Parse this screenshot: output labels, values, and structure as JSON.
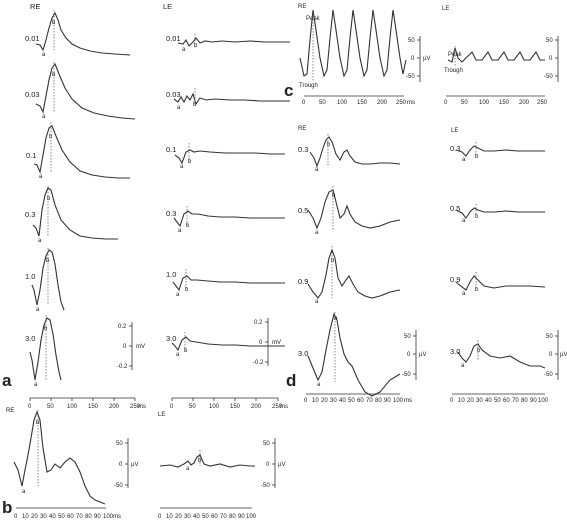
{
  "panel_labels": {
    "a": "a",
    "b": "b",
    "c": "c",
    "d": "d"
  },
  "eye_labels": {
    "re": "RE",
    "le": "LE"
  },
  "units": {
    "ms": "ms",
    "mv": "mV",
    "uv": "µV"
  },
  "annotations": {
    "peak": "Peak",
    "trough": "Trough"
  },
  "wave_marks": {
    "a": "a",
    "b": "b"
  },
  "chart_data": [
    {
      "panel": "a",
      "type": "line",
      "description_of_axes": "scotopic ERG series, time (ms) vs amplitude (mV)",
      "x_ticks": [
        "0",
        "50",
        "100",
        "150",
        "200",
        "250"
      ],
      "x_unit": "ms",
      "y_ticks": [
        "0.2",
        "0",
        "-0.2"
      ],
      "y_unit": "mV",
      "xlim": [
        0,
        250
      ],
      "ylim": [
        -0.3,
        0.3
      ],
      "stimulus_labels_RE": [
        "0.01",
        "0.03",
        "0.1",
        "0.3",
        "1.0",
        "3.0"
      ],
      "stimulus_labels_LE": [
        "0.01",
        "0.03",
        "0.1",
        "0.3",
        "1.0",
        "3.0"
      ],
      "series_RE_b_wave_peak_ms": [
        25,
        30,
        27,
        25,
        30,
        40
      ],
      "series_LE_b_wave_peak_ms": [
        35,
        40,
        38,
        38,
        40,
        42
      ]
    },
    {
      "panel": "b",
      "type": "line",
      "x_ticks": [
        "0",
        "10",
        "20",
        "30",
        "40",
        "50",
        "60",
        "70",
        "80",
        "90",
        "100"
      ],
      "x_unit": "ms",
      "y_ticks": [
        "50",
        "0",
        "-50"
      ],
      "y_unit": "µV",
      "xlim": [
        0,
        100
      ],
      "ylim": [
        -70,
        80
      ],
      "RE_b_wave_uv": 70,
      "LE_b_wave_uv": 12
    },
    {
      "panel": "c",
      "type": "line",
      "x_ticks": [
        "0",
        "50",
        "100",
        "150",
        "200",
        "250"
      ],
      "x_unit": "ms",
      "y_ticks": [
        "50",
        "0",
        "-50"
      ],
      "y_unit": "µV",
      "xlim": [
        0,
        250
      ],
      "ylim": [
        -60,
        80
      ],
      "flicker_peaks_RE_uv": 60,
      "flicker_peaks_LE_uv": 12
    },
    {
      "panel": "d",
      "type": "line",
      "x_ticks": [
        "0",
        "10",
        "20",
        "30",
        "40",
        "50",
        "60",
        "70",
        "80",
        "90",
        "100"
      ],
      "x_unit": "ms",
      "y_ticks": [
        "50",
        "0",
        "-50"
      ],
      "y_unit": "µV",
      "xlim": [
        0,
        100
      ],
      "ylim": [
        -60,
        80
      ],
      "stimulus_labels_RE": [
        "0.3",
        "0.5",
        "0.9",
        "3.0"
      ],
      "stimulus_labels_LE": [
        "0.3",
        "0.5",
        "0.9",
        "3.0"
      ]
    }
  ]
}
